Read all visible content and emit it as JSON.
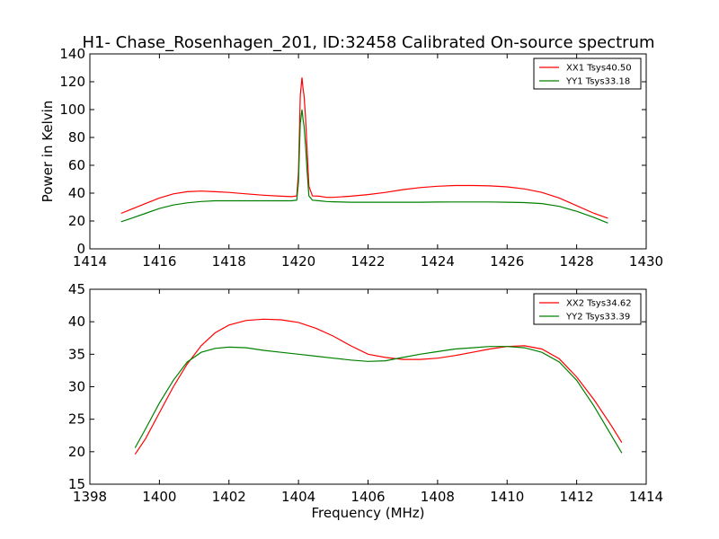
{
  "figure": {
    "title": "H1-  Chase_Rosenhagen_201, ID:32458 Calibrated On-source spectrum"
  },
  "chart_data": [
    {
      "type": "line",
      "xlabel": "",
      "ylabel": "Power in Kelvin",
      "xlim": [
        1414,
        1430
      ],
      "ylim": [
        0,
        140
      ],
      "xticks": [
        1414,
        1416,
        1418,
        1420,
        1422,
        1424,
        1426,
        1428,
        1430
      ],
      "yticks": [
        0,
        20,
        40,
        60,
        80,
        100,
        120,
        140
      ],
      "legend_position": "top-right",
      "grid": false,
      "series": [
        {
          "name": "XX1 Tsys40.50",
          "color": "#ff0000",
          "x": [
            1414.9,
            1415.2,
            1415.6,
            1416.0,
            1416.4,
            1416.8,
            1417.2,
            1417.6,
            1418.0,
            1418.5,
            1419.0,
            1419.5,
            1419.8,
            1419.95,
            1420.0,
            1420.05,
            1420.1,
            1420.13,
            1420.16,
            1420.2,
            1420.25,
            1420.3,
            1420.4,
            1420.6,
            1420.8,
            1421.0,
            1421.5,
            1422.0,
            1422.5,
            1423.0,
            1423.5,
            1424.0,
            1424.5,
            1425.0,
            1425.5,
            1426.0,
            1426.5,
            1427.0,
            1427.5,
            1428.0,
            1428.5,
            1428.9
          ],
          "y": [
            25.5,
            28.5,
            32.5,
            36.5,
            39.5,
            41.0,
            41.5,
            41.0,
            40.5,
            39.5,
            38.5,
            37.8,
            37.5,
            38.0,
            55.0,
            110.0,
            123.0,
            115.0,
            110.0,
            95.0,
            70.0,
            45.0,
            38.0,
            37.8,
            37.0,
            37.0,
            37.8,
            39.0,
            40.5,
            42.5,
            44.0,
            45.0,
            45.5,
            45.5,
            45.2,
            44.5,
            43.0,
            40.5,
            36.5,
            31.0,
            25.5,
            22.0
          ]
        },
        {
          "name": "YY1 Tsys33.18",
          "color": "#008000",
          "x": [
            1414.9,
            1415.2,
            1415.6,
            1416.0,
            1416.4,
            1416.8,
            1417.2,
            1417.6,
            1418.0,
            1418.5,
            1419.0,
            1419.5,
            1419.8,
            1419.95,
            1420.0,
            1420.05,
            1420.1,
            1420.13,
            1420.16,
            1420.2,
            1420.25,
            1420.3,
            1420.4,
            1420.6,
            1420.8,
            1421.0,
            1421.5,
            1422.0,
            1422.5,
            1423.0,
            1423.5,
            1424.0,
            1424.5,
            1425.0,
            1425.5,
            1426.0,
            1426.5,
            1427.0,
            1427.5,
            1428.0,
            1428.5,
            1428.9
          ],
          "y": [
            19.5,
            22.0,
            25.5,
            29.0,
            31.5,
            33.0,
            34.0,
            34.5,
            34.5,
            34.5,
            34.5,
            34.5,
            34.5,
            35.0,
            48.0,
            90.0,
            100.0,
            93.0,
            88.0,
            75.0,
            55.0,
            38.0,
            35.0,
            34.5,
            34.0,
            33.8,
            33.5,
            33.5,
            33.5,
            33.5,
            33.5,
            33.6,
            33.7,
            33.7,
            33.7,
            33.5,
            33.2,
            32.5,
            30.5,
            27.0,
            22.5,
            18.5
          ]
        }
      ]
    },
    {
      "type": "line",
      "xlabel": "Frequency (MHz)",
      "ylabel": "",
      "xlim": [
        1398,
        1414
      ],
      "ylim": [
        15,
        45
      ],
      "xticks": [
        1398,
        1400,
        1402,
        1404,
        1406,
        1408,
        1410,
        1412,
        1414
      ],
      "yticks": [
        15,
        20,
        25,
        30,
        35,
        40,
        45
      ],
      "legend_position": "top-right",
      "grid": false,
      "series": [
        {
          "name": "XX2 Tsys34.62",
          "color": "#ff0000",
          "x": [
            1399.3,
            1399.6,
            1400.0,
            1400.4,
            1400.8,
            1401.2,
            1401.6,
            1402.0,
            1402.5,
            1403.0,
            1403.5,
            1404.0,
            1404.5,
            1405.0,
            1405.5,
            1406.0,
            1406.5,
            1407.0,
            1407.5,
            1408.0,
            1408.5,
            1409.0,
            1409.5,
            1410.0,
            1410.5,
            1411.0,
            1411.5,
            1412.0,
            1412.5,
            1413.0,
            1413.3
          ],
          "y": [
            19.6,
            22.0,
            26.0,
            30.0,
            33.5,
            36.3,
            38.3,
            39.5,
            40.2,
            40.4,
            40.3,
            39.9,
            39.0,
            37.8,
            36.3,
            35.0,
            34.5,
            34.2,
            34.2,
            34.4,
            34.8,
            35.3,
            35.8,
            36.2,
            36.3,
            35.8,
            34.3,
            31.5,
            28.0,
            24.0,
            21.4
          ]
        },
        {
          "name": "YY2 Tsys33.39",
          "color": "#008000",
          "x": [
            1399.3,
            1399.6,
            1400.0,
            1400.4,
            1400.8,
            1401.2,
            1401.6,
            1402.0,
            1402.5,
            1403.0,
            1403.5,
            1404.0,
            1404.5,
            1405.0,
            1405.5,
            1406.0,
            1406.5,
            1407.0,
            1407.5,
            1408.0,
            1408.5,
            1409.0,
            1409.5,
            1410.0,
            1410.5,
            1411.0,
            1411.5,
            1412.0,
            1412.5,
            1413.0,
            1413.3
          ],
          "y": [
            20.6,
            23.5,
            27.5,
            31.0,
            33.8,
            35.3,
            35.9,
            36.1,
            36.0,
            35.6,
            35.3,
            35.0,
            34.7,
            34.4,
            34.1,
            33.9,
            34.0,
            34.5,
            35.0,
            35.4,
            35.8,
            36.0,
            36.2,
            36.2,
            36.0,
            35.3,
            33.8,
            31.0,
            27.0,
            22.5,
            19.8
          ]
        }
      ]
    }
  ]
}
